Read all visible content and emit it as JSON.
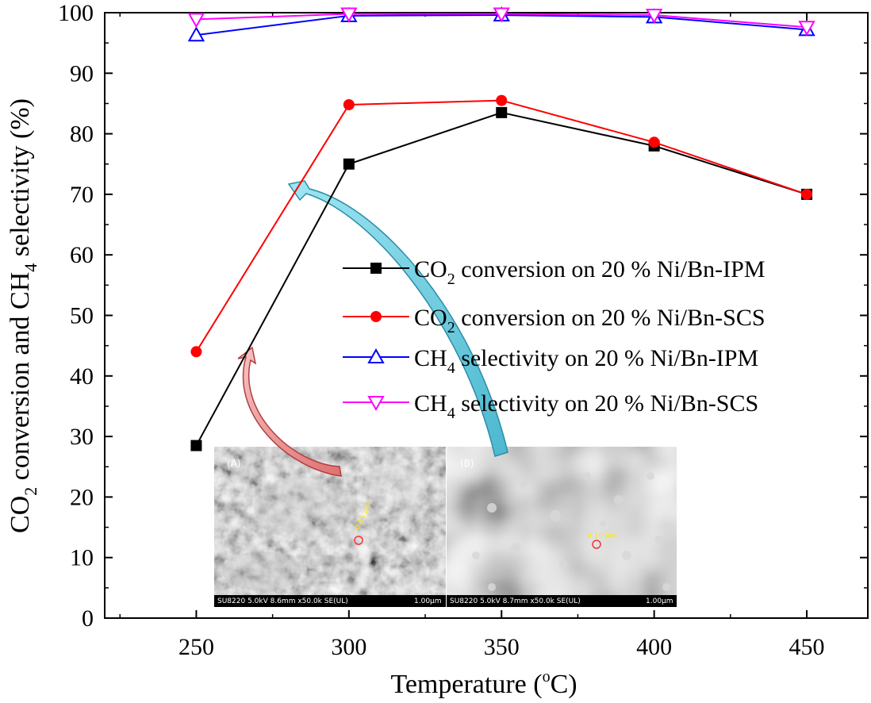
{
  "chart_data": {
    "type": "line",
    "x": [
      250,
      300,
      350,
      400,
      450
    ],
    "xlabel": "Temperature ( °C)",
    "xlabel_main": "Temperature (",
    "xlabel_unit": "C)",
    "xlabel_degree": "o",
    "ylabel": "CO2 conversion and CH4 selectivity (%)",
    "ylabel_parts": {
      "p1": "CO",
      "s1": "2",
      "p2": " conversion and CH",
      "s2": "4",
      "p3": " selectivity (%)"
    },
    "xlim": [
      220,
      470
    ],
    "ylim": [
      0,
      100
    ],
    "xticks": [
      250,
      300,
      350,
      400,
      450
    ],
    "yticks": [
      0,
      10,
      20,
      30,
      40,
      50,
      60,
      70,
      80,
      90,
      100
    ],
    "legend_position": "center-right",
    "series": [
      {
        "name": "CO2 conversion on 20 % Ni/Bn-IPM",
        "label_prefix": "CO",
        "label_sub": "2",
        "label_rest": " conversion on 20 % Ni/Bn-IPM",
        "color": "#000000",
        "marker": "square",
        "values": [
          28.5,
          75,
          83.5,
          78,
          70
        ]
      },
      {
        "name": "CO2 conversion on 20 % Ni/Bn-SCS",
        "label_prefix": "CO",
        "label_sub": "2",
        "label_rest": " conversion on 20 % Ni/Bn-SCS",
        "color": "#ff0000",
        "marker": "circle",
        "values": [
          44,
          84.8,
          85.5,
          78.6,
          70
        ]
      },
      {
        "name": "CH4 selectivity on 20 % Ni/Bn-IPM",
        "label_prefix": "CH",
        "label_sub": "4",
        "label_rest": " selectivity on 20 % Ni/Bn-IPM",
        "color": "#0000ff",
        "marker": "triangle-up",
        "values": [
          96.3,
          99.5,
          99.6,
          99.3,
          97.2
        ]
      },
      {
        "name": "CH4 selectivity on 20 % Ni/Bn-SCS",
        "label_prefix": "CH",
        "label_sub": "4",
        "label_rest": " selectivity on 20 % Ni/Bn-SCS",
        "color": "#ff00ff",
        "marker": "triangle-down",
        "values": [
          98.9,
          99.8,
          99.8,
          99.6,
          97.6
        ]
      }
    ],
    "inset": {
      "panels": [
        {
          "label": "(A)",
          "info": "SU8220 5.0kV 8.6mm x50.0k SE(UL)",
          "scale": "1.00μm",
          "measure": "0.11 μm"
        },
        {
          "label": "(B)",
          "info": "SU8220 5.0kV 8.7mm x50.0k SE(UL)",
          "scale": "1.00μm",
          "measure": "0.10 μm"
        }
      ]
    }
  }
}
